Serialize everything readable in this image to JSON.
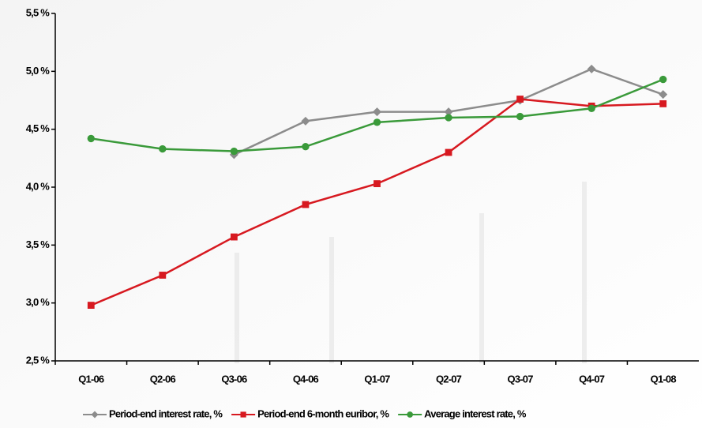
{
  "chart_data": {
    "type": "line",
    "categories": [
      "Q1-06",
      "Q2-06",
      "Q3-06",
      "Q4-06",
      "Q1-07",
      "Q2-07",
      "Q3-07",
      "Q4-07",
      "Q1-08"
    ],
    "series": [
      {
        "name": "Period-end interest rate, %",
        "color": "#8c8c8c",
        "marker": "diamond",
        "values": [
          null,
          null,
          4.28,
          4.57,
          4.65,
          4.65,
          4.75,
          5.02,
          4.8
        ]
      },
      {
        "name": "Period-end 6-month euribor, %",
        "color": "#d71920",
        "marker": "square",
        "values": [
          2.98,
          3.24,
          3.57,
          3.85,
          4.03,
          4.3,
          4.76,
          4.7,
          4.72
        ]
      },
      {
        "name": "Average interest rate, %",
        "color": "#3a9a3a",
        "marker": "circle",
        "values": [
          4.42,
          4.33,
          4.31,
          4.35,
          4.56,
          4.6,
          4.61,
          4.68,
          4.93
        ]
      }
    ],
    "ylim": [
      2.5,
      5.5
    ],
    "yticks": [
      {
        "value": 2.5,
        "label": "2,5 %"
      },
      {
        "value": 3.0,
        "label": "3,0 %"
      },
      {
        "value": 3.5,
        "label": "3,5 %"
      },
      {
        "value": 4.0,
        "label": "4,0 %"
      },
      {
        "value": 4.5,
        "label": "4,5 %"
      },
      {
        "value": 5.0,
        "label": "5,0 %"
      },
      {
        "value": 5.5,
        "label": "5,5 %"
      }
    ],
    "legend": "bottom"
  }
}
